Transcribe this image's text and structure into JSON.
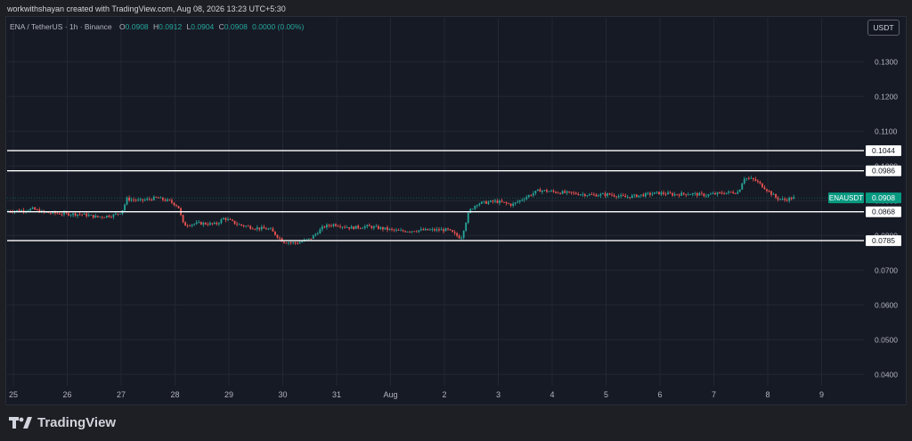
{
  "header": {
    "credit": "workwithshayan created with TradingView.com, Aug 08, 2026 13:23 UTC+5:30"
  },
  "legend": {
    "symbol": "ENA / TetherUS · 1h · Binance",
    "o_label": "O",
    "o": "0.0908",
    "h_label": "H",
    "h": "0.0912",
    "l_label": "L",
    "l": "0.0904",
    "c_label": "C",
    "c": "0.0908",
    "change": "0.0000 (0.00%)"
  },
  "currency_button": "USDT",
  "brand": {
    "name": "TradingView"
  },
  "colors": {
    "background": "#161a25",
    "up": "#26a69a",
    "down": "#ef5350",
    "text": "#b2b5be",
    "level_line": "#ffffff",
    "label_bg": "#089981"
  },
  "chart_data": {
    "type": "candlestick",
    "symbol": "ENAUSDT",
    "ylim": [
      0.0375,
      0.1375
    ],
    "y_ticks": [
      "0.1300",
      "0.1200",
      "0.1100",
      "0.1000",
      "0.0900",
      "0.0800",
      "0.0700",
      "0.0600",
      "0.0500",
      "0.0400"
    ],
    "y_tick_values": [
      0.13,
      0.12,
      0.11,
      0.1,
      0.09,
      0.08,
      0.07,
      0.06,
      0.05,
      0.04
    ],
    "x_labels": [
      "25",
      "26",
      "27",
      "28",
      "29",
      "30",
      "31",
      "Aug",
      "2",
      "3",
      "4",
      "5",
      "6",
      "7",
      "8",
      "9"
    ],
    "x_label_days": [
      0,
      1,
      2,
      3,
      4,
      5,
      6,
      7,
      8,
      9,
      10,
      11,
      12,
      13,
      14,
      15
    ],
    "horizontal_levels": [
      {
        "value": 0.1044,
        "label": "0.1044"
      },
      {
        "value": 0.0986,
        "label": "0.0986"
      },
      {
        "value": 0.0868,
        "label": "0.0868"
      },
      {
        "value": 0.0785,
        "label": "0.0785"
      }
    ],
    "last_price": {
      "symbol": "ENAUSDT",
      "value": 0.0908,
      "label": "0.0908"
    },
    "price_path": [
      [
        -0.1,
        0.087
      ],
      [
        0.2,
        0.0872
      ],
      [
        0.4,
        0.0876
      ],
      [
        0.6,
        0.0866
      ],
      [
        1.0,
        0.0862
      ],
      [
        1.3,
        0.0861
      ],
      [
        1.6,
        0.0853
      ],
      [
        1.9,
        0.0858
      ],
      [
        2.05,
        0.0868
      ],
      [
        2.15,
        0.0905
      ],
      [
        2.4,
        0.09
      ],
      [
        2.7,
        0.0908
      ],
      [
        2.95,
        0.0898
      ],
      [
        3.1,
        0.0884
      ],
      [
        3.2,
        0.083
      ],
      [
        3.5,
        0.0835
      ],
      [
        3.8,
        0.0832
      ],
      [
        3.95,
        0.085
      ],
      [
        4.2,
        0.0832
      ],
      [
        4.5,
        0.0822
      ],
      [
        4.8,
        0.0818
      ],
      [
        5.05,
        0.0782
      ],
      [
        5.3,
        0.0778
      ],
      [
        5.55,
        0.079
      ],
      [
        5.8,
        0.0825
      ],
      [
        6.0,
        0.0832
      ],
      [
        6.3,
        0.0822
      ],
      [
        6.6,
        0.0826
      ],
      [
        6.9,
        0.082
      ],
      [
        7.2,
        0.0812
      ],
      [
        7.6,
        0.0815
      ],
      [
        8.1,
        0.0816
      ],
      [
        8.35,
        0.0792
      ],
      [
        8.5,
        0.087
      ],
      [
        8.65,
        0.0892
      ],
      [
        9.0,
        0.0898
      ],
      [
        9.3,
        0.0888
      ],
      [
        9.55,
        0.091
      ],
      [
        9.8,
        0.093
      ],
      [
        10.1,
        0.0925
      ],
      [
        10.5,
        0.092
      ],
      [
        10.8,
        0.0916
      ],
      [
        11.1,
        0.0918
      ],
      [
        11.4,
        0.091
      ],
      [
        11.7,
        0.0916
      ],
      [
        12.0,
        0.0922
      ],
      [
        12.3,
        0.0918
      ],
      [
        12.6,
        0.092
      ],
      [
        12.9,
        0.0916
      ],
      [
        13.2,
        0.0922
      ],
      [
        13.5,
        0.0925
      ],
      [
        13.6,
        0.0966
      ],
      [
        13.8,
        0.096
      ],
      [
        14.0,
        0.0935
      ],
      [
        14.2,
        0.0908
      ],
      [
        14.35,
        0.0902
      ],
      [
        14.5,
        0.0908
      ]
    ]
  }
}
